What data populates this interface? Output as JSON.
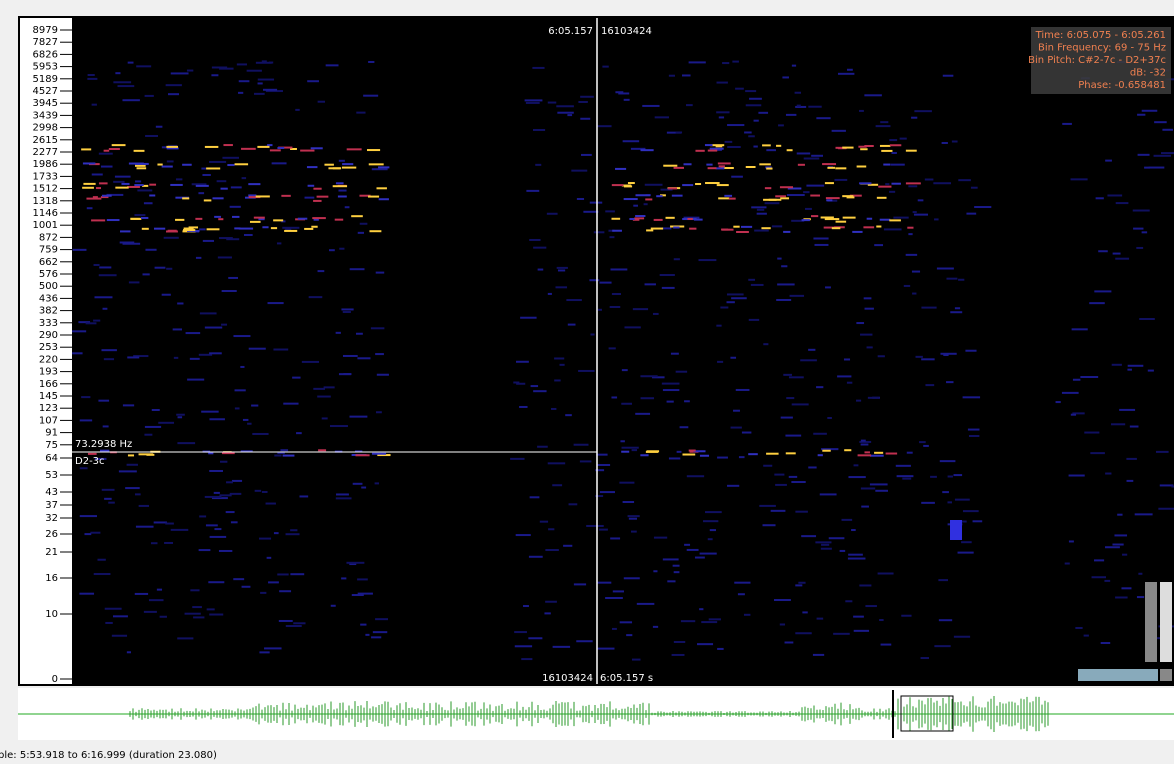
{
  "frequency_scale": {
    "labels": [
      "8979",
      "7827",
      "6826",
      "5953",
      "5189",
      "4527",
      "3945",
      "3439",
      "2998",
      "2615",
      "2277",
      "1986",
      "1733",
      "1512",
      "1318",
      "1146",
      "1001",
      "872",
      "759",
      "662",
      "576",
      "500",
      "436",
      "382",
      "333",
      "290",
      "253",
      "220",
      "193",
      "166",
      "145",
      "123",
      "107",
      "91",
      "75",
      "64",
      "53",
      "43",
      "37",
      "32",
      "26",
      "21",
      "16",
      "10",
      "0"
    ]
  },
  "cursor": {
    "time_top": "6:05.157",
    "frame_top": "16103424",
    "frequency": "73.2938 Hz",
    "pitch": "D2-3c",
    "frame_bottom": "16103424",
    "time_bottom": "6:05.157 s"
  },
  "info_box": {
    "lines": [
      "Time: 6:05.075 - 6:05.261",
      "Bin Frequency: 69 - 75 Hz",
      "Bin Pitch: C#2-7c - D2+37c",
      "dB: -32",
      "Phase: -0.658481"
    ]
  },
  "status_bar": {
    "text": "ple: 5:53.918 to 6:16.999 (duration 23.080)"
  }
}
